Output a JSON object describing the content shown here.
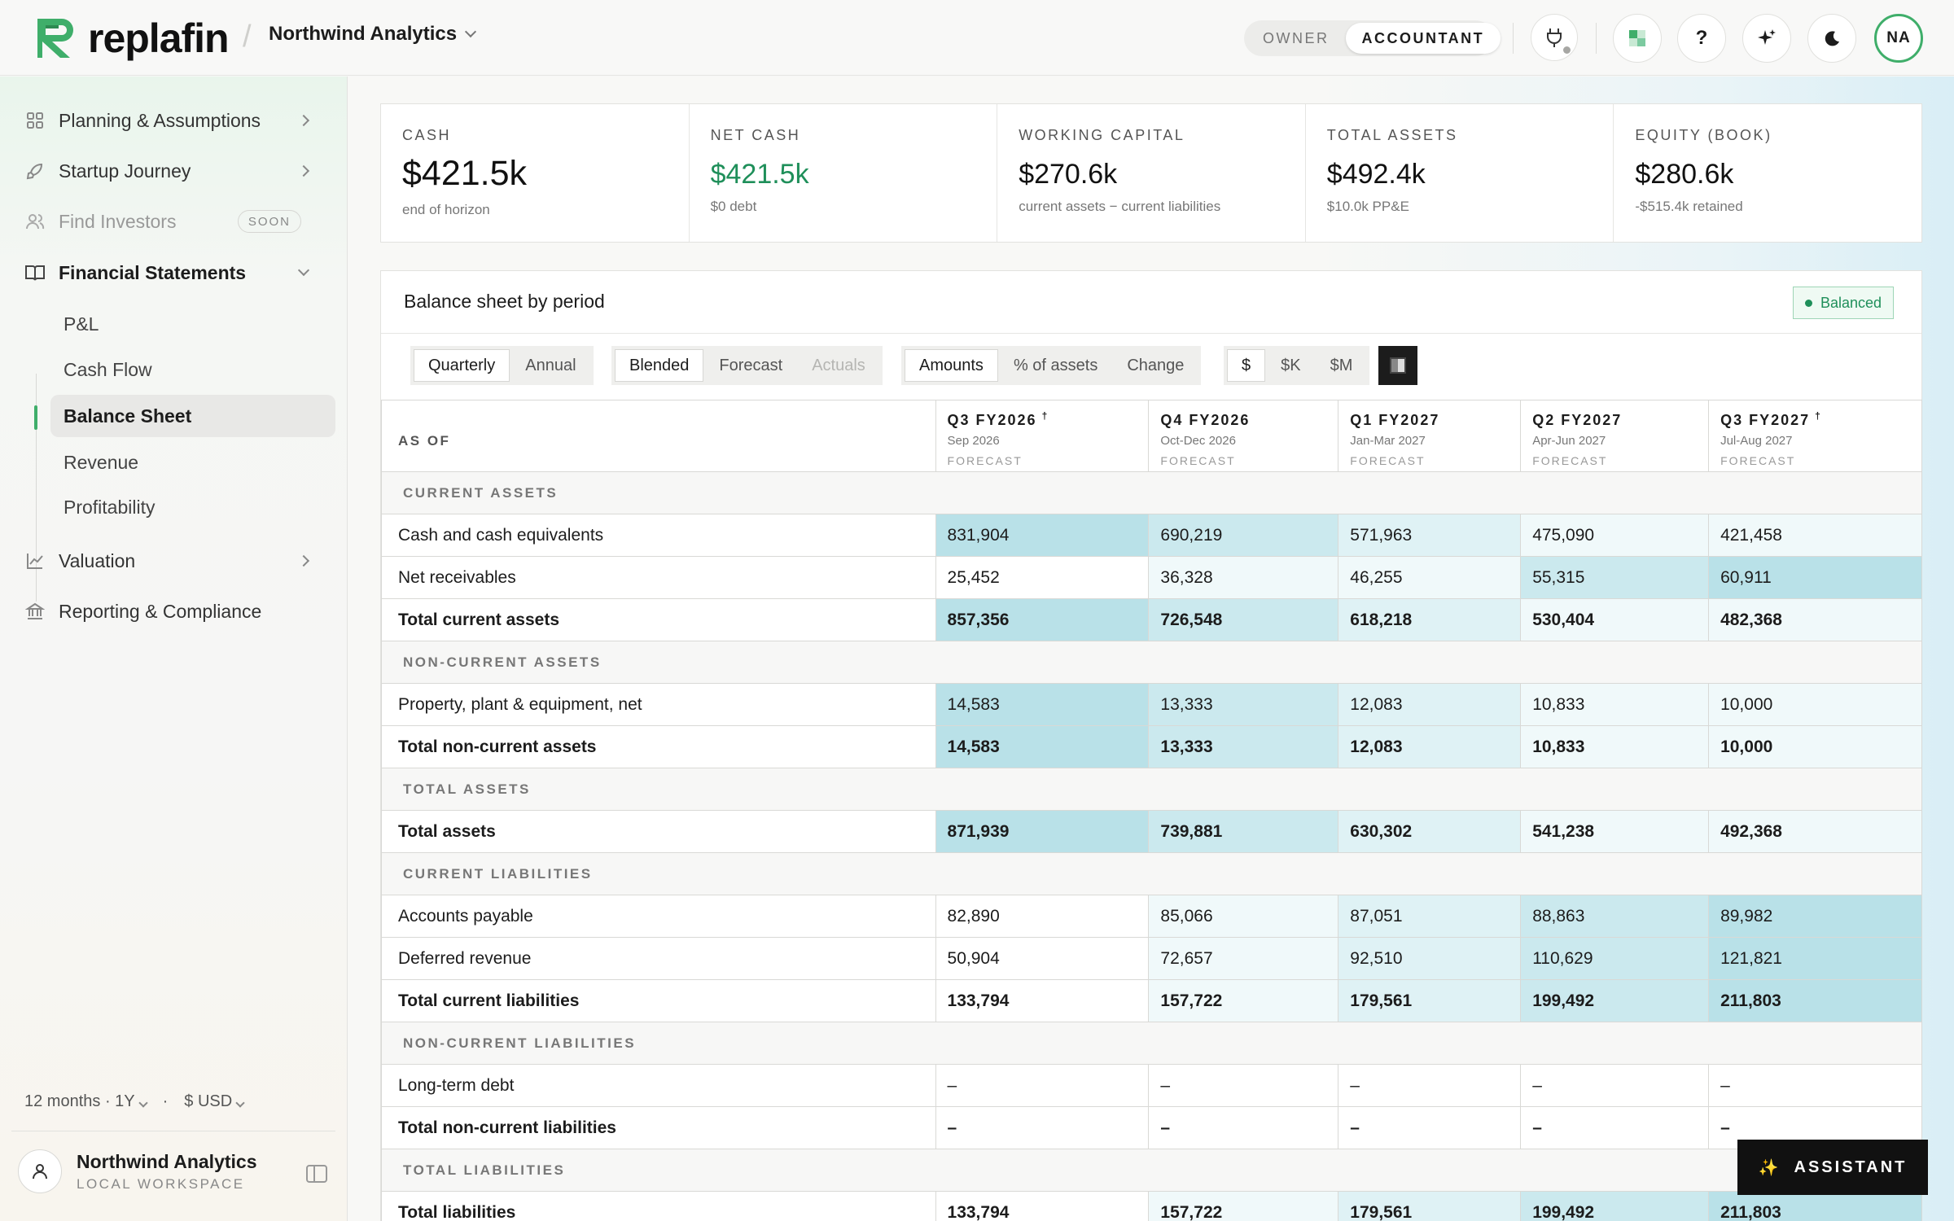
{
  "app": {
    "brand": "replafin",
    "workspace": "Northwind Analytics"
  },
  "roles": [
    "OWNER",
    "ACCOUNTANT"
  ],
  "active_role": "ACCOUNTANT",
  "header_buttons": {
    "help": "?",
    "avatar": "NA"
  },
  "sidebar": {
    "items": [
      {
        "label": "Planning & Assumptions"
      },
      {
        "label": "Startup Journey"
      },
      {
        "label": "Find Investors",
        "badge": "SOON"
      },
      {
        "label": "Financial Statements"
      },
      {
        "label": "Valuation"
      },
      {
        "label": "Reporting & Compliance"
      }
    ],
    "sub_items": [
      "P&L",
      "Cash Flow",
      "Balance Sheet",
      "Revenue",
      "Profitability"
    ],
    "active_sub": "Balance Sheet",
    "horizon": "12 months · 1Y",
    "currency": "$ USD",
    "user": {
      "name": "Northwind Analytics",
      "sub": "LOCAL WORKSPACE"
    }
  },
  "kpis": [
    {
      "label": "CASH",
      "value": "$421.5k",
      "sub": "end of horizon"
    },
    {
      "label": "NET CASH",
      "value": "$421.5k",
      "sub": "$0 debt",
      "color": "#1f8f5a"
    },
    {
      "label": "WORKING CAPITAL",
      "value": "$270.6k",
      "sub": "current assets − current liabilities"
    },
    {
      "label": "TOTAL ASSETS",
      "value": "$492.4k",
      "sub": "$10.0k PP&E"
    },
    {
      "label": "EQUITY (BOOK)",
      "value": "$280.6k",
      "sub": "-$515.4k retained"
    }
  ],
  "card": {
    "title": "Balance sheet by period",
    "status": "Balanced",
    "period_toggle": [
      "Quarterly",
      "Annual"
    ],
    "source_toggle": [
      "Blended",
      "Forecast",
      "Actuals"
    ],
    "view_toggle": [
      "Amounts",
      "% of assets",
      "Change"
    ],
    "unit_toggle": [
      "$",
      "$K",
      "$M"
    ]
  },
  "table": {
    "corner": "AS OF",
    "columns": [
      {
        "period": "Q3 FY2026",
        "mark": "†",
        "range": "Sep 2026",
        "kind": "FORECAST"
      },
      {
        "period": "Q4 FY2026",
        "mark": "",
        "range": "Oct-Dec 2026",
        "kind": "FORECAST"
      },
      {
        "period": "Q1 FY2027",
        "mark": "",
        "range": "Jan-Mar 2027",
        "kind": "FORECAST"
      },
      {
        "period": "Q2 FY2027",
        "mark": "",
        "range": "Apr-Jun 2027",
        "kind": "FORECAST"
      },
      {
        "period": "Q3 FY2027",
        "mark": "†",
        "range": "Jul-Aug 2027",
        "kind": "FORECAST"
      }
    ],
    "rows": [
      {
        "type": "section",
        "label": "CURRENT ASSETS"
      },
      {
        "type": "row",
        "label": "Cash and cash equivalents",
        "values": [
          "831,904",
          "690,219",
          "571,963",
          "475,090",
          "421,458"
        ],
        "shade": [
          4,
          3,
          2,
          1,
          1
        ]
      },
      {
        "type": "row",
        "label": "Net receivables",
        "values": [
          "25,452",
          "36,328",
          "46,255",
          "55,315",
          "60,911"
        ],
        "shade": [
          0,
          1,
          1,
          3,
          4
        ]
      },
      {
        "type": "total",
        "label": "Total current assets",
        "values": [
          "857,356",
          "726,548",
          "618,218",
          "530,404",
          "482,368"
        ],
        "shade": [
          4,
          3,
          2,
          1,
          1
        ]
      },
      {
        "type": "section",
        "label": "NON-CURRENT ASSETS"
      },
      {
        "type": "row",
        "label": "Property, plant & equipment, net",
        "values": [
          "14,583",
          "13,333",
          "12,083",
          "10,833",
          "10,000"
        ],
        "shade": [
          4,
          3,
          2,
          1,
          1
        ]
      },
      {
        "type": "total",
        "label": "Total non-current assets",
        "values": [
          "14,583",
          "13,333",
          "12,083",
          "10,833",
          "10,000"
        ],
        "shade": [
          4,
          3,
          2,
          1,
          1
        ]
      },
      {
        "type": "section",
        "label": "TOTAL ASSETS"
      },
      {
        "type": "total",
        "label": "Total assets",
        "values": [
          "871,939",
          "739,881",
          "630,302",
          "541,238",
          "492,368"
        ],
        "shade": [
          4,
          3,
          2,
          1,
          1
        ]
      },
      {
        "type": "section",
        "label": "CURRENT LIABILITIES"
      },
      {
        "type": "row",
        "label": "Accounts payable",
        "values": [
          "82,890",
          "85,066",
          "87,051",
          "88,863",
          "89,982"
        ],
        "shade": [
          0,
          1,
          2,
          3,
          4
        ]
      },
      {
        "type": "row",
        "label": "Deferred revenue",
        "values": [
          "50,904",
          "72,657",
          "92,510",
          "110,629",
          "121,821"
        ],
        "shade": [
          0,
          1,
          2,
          3,
          4
        ]
      },
      {
        "type": "total",
        "label": "Total current liabilities",
        "values": [
          "133,794",
          "157,722",
          "179,561",
          "199,492",
          "211,803"
        ],
        "shade": [
          0,
          1,
          2,
          3,
          4
        ]
      },
      {
        "type": "section",
        "label": "NON-CURRENT LIABILITIES"
      },
      {
        "type": "row",
        "label": "Long-term debt",
        "values": [
          "–",
          "–",
          "–",
          "–",
          "–"
        ],
        "shade": [
          0,
          0,
          0,
          0,
          0
        ]
      },
      {
        "type": "total",
        "label": "Total non-current liabilities",
        "values": [
          "–",
          "–",
          "–",
          "–",
          "–"
        ],
        "shade": [
          0,
          0,
          0,
          0,
          0
        ]
      },
      {
        "type": "section",
        "label": "TOTAL LIABILITIES"
      },
      {
        "type": "total",
        "label": "Total liabilities",
        "values": [
          "133,794",
          "157,722",
          "179,561",
          "199,492",
          "211,803"
        ],
        "shade": [
          0,
          1,
          2,
          3,
          4
        ]
      }
    ]
  },
  "assistant": {
    "label": "ASSISTANT",
    "icon": "✨"
  }
}
